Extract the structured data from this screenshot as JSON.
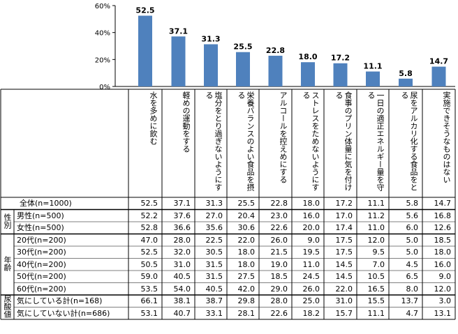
{
  "chart_data": {
    "type": "bar",
    "color": "#4F81BD",
    "ylim": [
      0,
      60
    ],
    "yticks": [
      "0%",
      "20%",
      "40%",
      "60%"
    ],
    "grid": false,
    "categories": [
      "水を多めに飲む",
      "軽めの運動をする",
      "塩分をとり過ぎないようにする",
      "栄養バランスのよい食品を摂る",
      "アルコールを控えめにする",
      "ストレスをためないようにする",
      "食事のプリン体量に気を付ける",
      "一日の適正エネルギー量を守る",
      "尿をアルカリ化する食品をとる",
      "実施できそうなものはない"
    ],
    "values": [
      52.5,
      37.1,
      31.3,
      25.5,
      22.8,
      18.0,
      17.2,
      11.1,
      5.8,
      14.7
    ],
    "value_labels": [
      "52.5",
      "37.1",
      "31.3",
      "25.5",
      "22.8",
      "18.0",
      "17.2",
      "11.1",
      "5.8",
      "14.7"
    ]
  },
  "table": {
    "groups": [
      {
        "label": "",
        "rows": [
          0
        ]
      },
      {
        "label": "性別",
        "rows": [
          1,
          2
        ]
      },
      {
        "label": "年齢",
        "rows": [
          3,
          4,
          5,
          6,
          7
        ]
      },
      {
        "label": "尿酸値",
        "rows": [
          8,
          9
        ]
      }
    ],
    "rows": [
      {
        "label": "全体(n=1000)",
        "values": [
          "52.5",
          "37.1",
          "31.3",
          "25.5",
          "22.8",
          "18.0",
          "17.2",
          "11.1",
          "5.8",
          "14.7"
        ]
      },
      {
        "label": "男性(n=500)",
        "values": [
          "52.2",
          "37.6",
          "27.0",
          "20.4",
          "23.0",
          "16.0",
          "17.0",
          "11.2",
          "5.6",
          "16.8"
        ]
      },
      {
        "label": "女性(n=500)",
        "values": [
          "52.8",
          "36.6",
          "35.6",
          "30.6",
          "22.6",
          "20.0",
          "17.4",
          "11.0",
          "6.0",
          "12.6"
        ]
      },
      {
        "label": "20代(n=200)",
        "values": [
          "47.0",
          "28.0",
          "22.5",
          "22.0",
          "26.0",
          "9.0",
          "17.5",
          "12.0",
          "5.0",
          "18.5"
        ]
      },
      {
        "label": "30代(n=200)",
        "values": [
          "52.5",
          "32.0",
          "30.5",
          "18.0",
          "21.5",
          "19.5",
          "17.5",
          "9.5",
          "5.0",
          "18.0"
        ]
      },
      {
        "label": "40代(n=200)",
        "values": [
          "50.5",
          "31.0",
          "31.5",
          "18.0",
          "19.0",
          "11.0",
          "14.5",
          "7.0",
          "4.5",
          "16.0"
        ]
      },
      {
        "label": "50代(n=200)",
        "values": [
          "59.0",
          "40.5",
          "31.5",
          "27.5",
          "18.5",
          "24.5",
          "14.5",
          "10.5",
          "6.5",
          "9.0"
        ]
      },
      {
        "label": "60代(n=200)",
        "values": [
          "53.5",
          "54.0",
          "40.5",
          "42.0",
          "29.0",
          "26.0",
          "22.0",
          "16.5",
          "8.0",
          "12.0"
        ]
      },
      {
        "label": "気にしている計(n=168)",
        "values": [
          "66.1",
          "38.1",
          "38.7",
          "29.8",
          "28.0",
          "25.0",
          "31.0",
          "15.5",
          "13.7",
          "3.0"
        ]
      },
      {
        "label": "気にしていない計(n=686)",
        "values": [
          "53.1",
          "40.7",
          "33.1",
          "28.1",
          "22.6",
          "18.2",
          "15.7",
          "11.1",
          "4.7",
          "13.1"
        ]
      }
    ]
  }
}
